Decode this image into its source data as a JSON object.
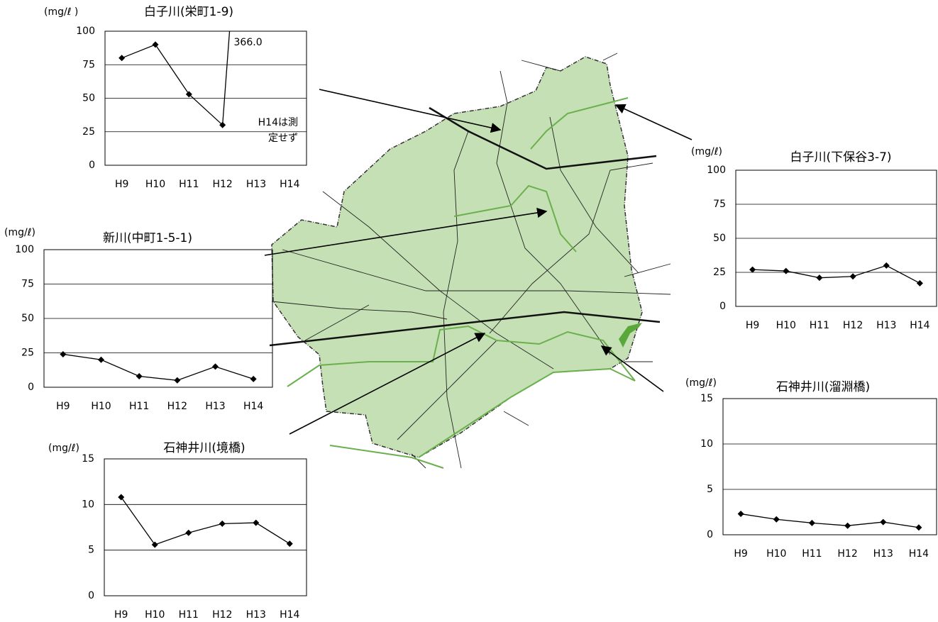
{
  "chart_data": [
    {
      "type": "line",
      "title": "白子川(栄町1-9)",
      "y_label": "(mg/ℓ )",
      "categories": [
        "H9",
        "H10",
        "H11",
        "H12",
        "H13",
        "H14"
      ],
      "values": [
        80,
        90,
        53,
        30,
        366.0,
        null
      ],
      "value_labels": [
        null,
        null,
        null,
        null,
        "366.0",
        null
      ],
      "annotation": [
        "H14は測",
        "定せず"
      ],
      "color": "#000000",
      "ylim": [
        0,
        100
      ],
      "yticks": [
        0,
        25,
        50,
        75,
        100
      ],
      "grid": true
    },
    {
      "type": "line",
      "title": "白子川(下保谷3-7)",
      "y_label": "(mg/ℓ)",
      "categories": [
        "H9",
        "H10",
        "H11",
        "H12",
        "H13",
        "H14"
      ],
      "values": [
        27,
        26,
        21,
        22,
        30,
        17
      ],
      "color": "#000000",
      "ylim": [
        0,
        100
      ],
      "yticks": [
        0,
        25,
        50,
        75,
        100
      ],
      "grid": true
    },
    {
      "type": "line",
      "title": "新川(中町1-5-1)",
      "y_label": "(mg/ℓ)",
      "categories": [
        "H9",
        "H10",
        "H11",
        "H12",
        "H13",
        "H14"
      ],
      "values": [
        24,
        20,
        8,
        5,
        15,
        6
      ],
      "color": "#000000",
      "ylim": [
        0,
        100
      ],
      "yticks": [
        0,
        25,
        50,
        75,
        100
      ],
      "grid": true
    },
    {
      "type": "line",
      "title": "石神井川(境橋)",
      "y_label": "(mg/ℓ)",
      "categories": [
        "H9",
        "H10",
        "H11",
        "H12",
        "H13",
        "H14"
      ],
      "values": [
        10.8,
        5.6,
        6.9,
        7.9,
        8.0,
        5.7
      ],
      "color": "#000000",
      "ylim": [
        0,
        15
      ],
      "yticks": [
        0,
        5,
        10,
        15
      ],
      "grid": true
    },
    {
      "type": "line",
      "title": "石神井川(溜淵橋)",
      "y_label": "(mg/ℓ)",
      "categories": [
        "H9",
        "H10",
        "H11",
        "H12",
        "H13",
        "H14"
      ],
      "values": [
        2.3,
        1.7,
        1.3,
        1.0,
        1.4,
        0.8
      ],
      "color": "#000000",
      "ylim": [
        0,
        15
      ],
      "yticks": [
        0,
        5,
        10,
        15
      ],
      "grid": true
    }
  ]
}
